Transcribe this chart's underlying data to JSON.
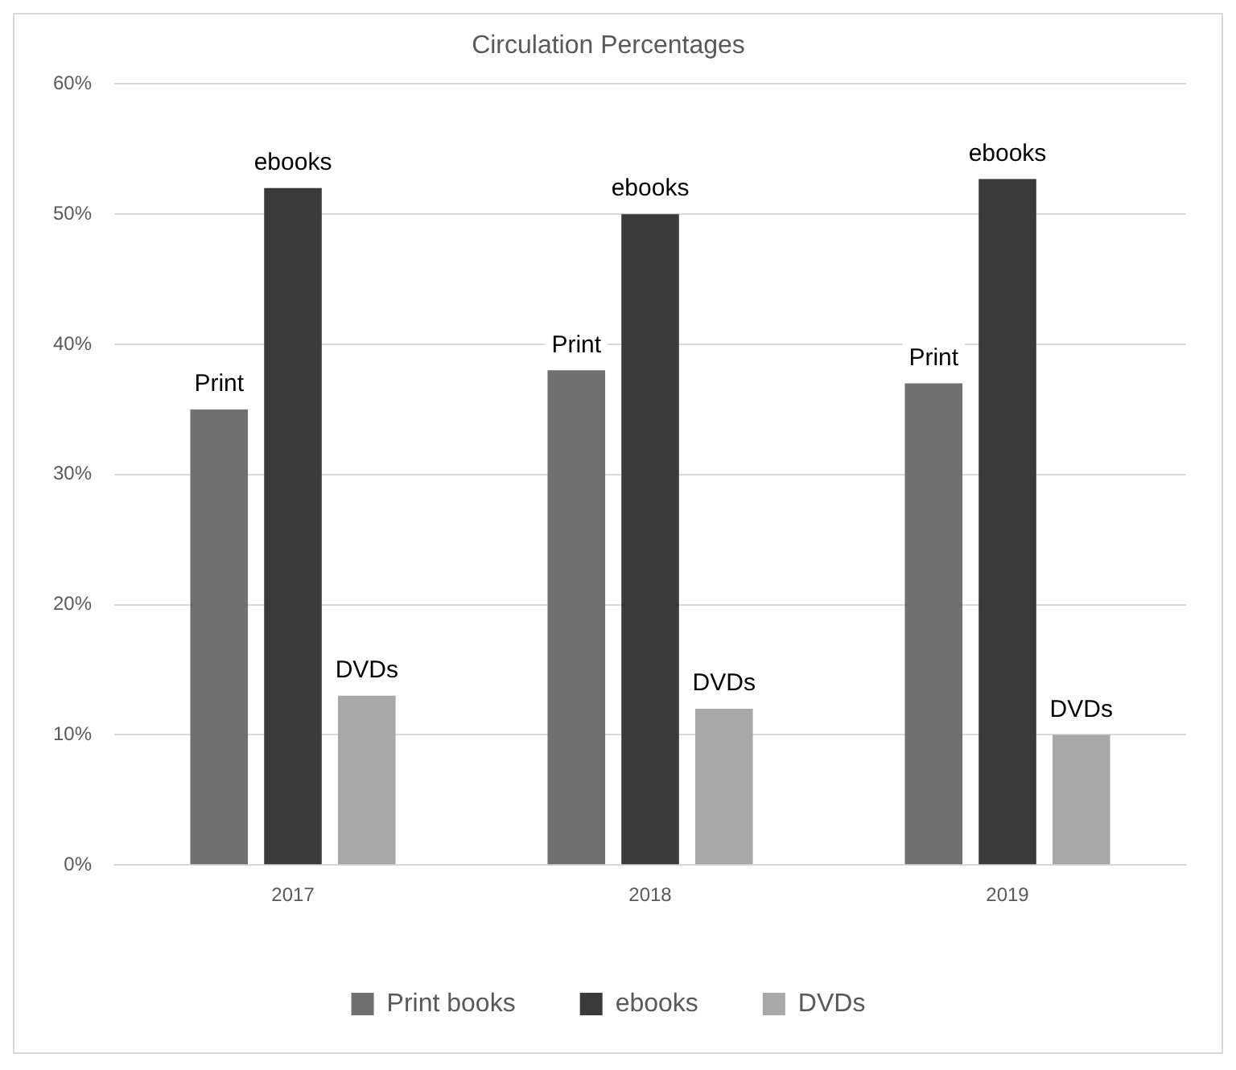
{
  "chart_data": {
    "type": "bar",
    "title": "Circulation Percentages",
    "categories": [
      "2017",
      "2018",
      "2019"
    ],
    "series": [
      {
        "name": "Print books",
        "color": "#707070",
        "values": [
          35,
          38,
          37
        ]
      },
      {
        "name": "ebooks",
        "color": "#3a3a3a",
        "values": [
          52,
          50,
          52.7
        ]
      },
      {
        "name": "DVDs",
        "color": "#a8a8a8",
        "values": [
          13,
          12,
          10
        ]
      }
    ],
    "ylim": [
      0,
      60
    ],
    "yticks": [
      {
        "value": 0,
        "label": "0%"
      },
      {
        "value": 10,
        "label": "10%"
      },
      {
        "value": 20,
        "label": "20%"
      },
      {
        "value": 30,
        "label": "30%"
      },
      {
        "value": 40,
        "label": "40%"
      },
      {
        "value": 50,
        "label": "50%"
      },
      {
        "value": 60,
        "label": "60%"
      }
    ],
    "grid": "y",
    "legend": "bottom",
    "annotations": [
      "Print",
      "ebooks",
      "DVDs",
      "Print",
      "ebooks",
      "DVDs",
      "Print",
      "ebooks",
      "DVDs"
    ]
  }
}
